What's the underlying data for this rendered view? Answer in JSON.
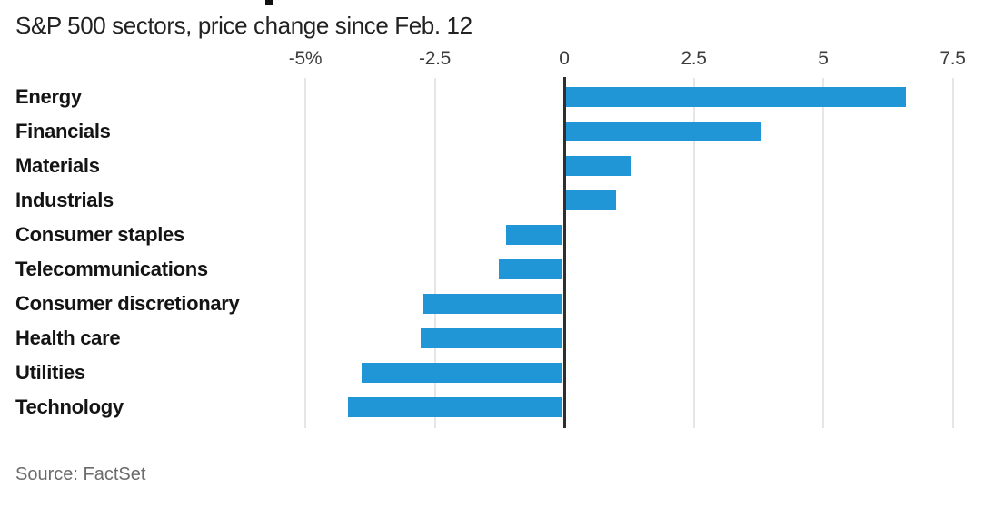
{
  "header": {
    "subtitle": "S&P 500 sectors, price change since Feb. 12"
  },
  "footer": {
    "source": "Source: FactSet"
  },
  "colors": {
    "bar": "#2096d7",
    "zero_axis": "#2e2e2e",
    "gridline": "#e6e6e6",
    "sector_label": "#141414",
    "tick_label": "#3c3c3c",
    "subtitle": "#222222",
    "source": "#6b6b6b",
    "headline_fragment": "#111111"
  },
  "chart_data": {
    "type": "bar",
    "orientation": "horizontal",
    "title": "S&P 500 sectors, price change since Feb. 12",
    "unit": "percent",
    "categories": [
      "Energy",
      "Financials",
      "Materials",
      "Industrials",
      "Consumer staples",
      "Telecommunications",
      "Consumer discretionary",
      "Health care",
      "Utilities",
      "Technology"
    ],
    "values": [
      6.6,
      3.8,
      1.3,
      1.0,
      -1.1,
      -1.25,
      -2.7,
      -2.75,
      -3.9,
      -4.15
    ],
    "x_ticks": [
      {
        "label": "-5%",
        "value": -5
      },
      {
        "label": "-2.5",
        "value": -2.5
      },
      {
        "label": "0",
        "value": 0
      },
      {
        "label": "2.5",
        "value": 2.5
      },
      {
        "label": "5",
        "value": 5
      },
      {
        "label": "7.5",
        "value": 7.5
      }
    ],
    "xlim": [
      -5.4,
      8.1
    ],
    "grid": "vertical",
    "legend": false,
    "source": "Source: FactSet"
  }
}
